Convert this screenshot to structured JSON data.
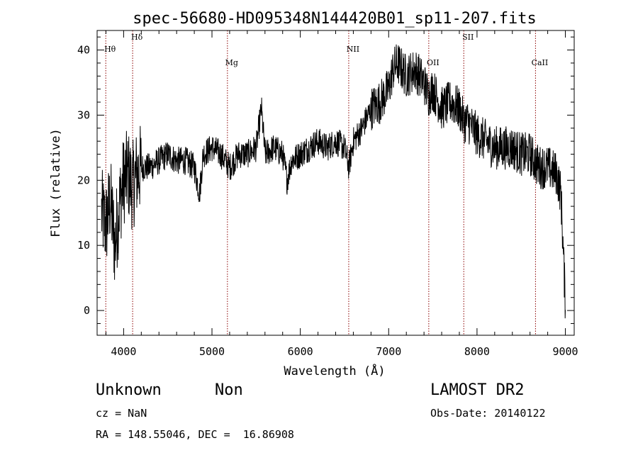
{
  "chart_data": {
    "type": "line",
    "title": "spec-56680-HD095348N144420B01_sp11-207.fits",
    "xlabel": "Wavelength (Å)",
    "ylabel": "Flux (relative)",
    "xlim": [
      3700,
      9100
    ],
    "ylim": [
      -3.8,
      43.0
    ],
    "x_ticks": [
      "4000",
      "5000",
      "6000",
      "7000",
      "8000",
      "9000"
    ],
    "y_ticks": [
      "0",
      "10",
      "20",
      "30",
      "40"
    ],
    "x_tick_values": [
      4000,
      5000,
      6000,
      7000,
      8000,
      9000
    ],
    "y_tick_values": [
      0,
      10,
      20,
      30,
      40
    ],
    "series": [
      {
        "color": "#000000",
        "x": [
          3750,
          3800,
          3850,
          3900,
          3950,
          4000,
          4050,
          4100,
          4150,
          4200,
          4300,
          4400,
          4500,
          4600,
          4700,
          4800,
          4860,
          4900,
          5000,
          5100,
          5200,
          5300,
          5400,
          5500,
          5560,
          5600,
          5700,
          5800,
          5850,
          5900,
          6000,
          6100,
          6200,
          6300,
          6400,
          6500,
          6550,
          6600,
          6700,
          6800,
          6900,
          7000,
          7050,
          7100,
          7200,
          7300,
          7400,
          7450,
          7500,
          7600,
          7700,
          7800,
          7850,
          7900,
          8000,
          8100,
          8200,
          8300,
          8400,
          8500,
          8600,
          8700,
          8800,
          8900,
          8950,
          9000
        ],
        "y": [
          15,
          13,
          17,
          10,
          16,
          20,
          21,
          19,
          21,
          22,
          22,
          23,
          24,
          23,
          23,
          22,
          18,
          24,
          25,
          24,
          22,
          24,
          24,
          25,
          31,
          24,
          25,
          24,
          20,
          23,
          24,
          25,
          26,
          25,
          26,
          25,
          22,
          26,
          28,
          31,
          32,
          34,
          37,
          38,
          36,
          37,
          35,
          33,
          34,
          31,
          32,
          31,
          29,
          29,
          27,
          26,
          25,
          25,
          25,
          24,
          24,
          22,
          22,
          21,
          18,
          1
        ]
      }
    ],
    "line_markers": [
      {
        "label": "Hθ",
        "x": 3798
      },
      {
        "label": "Hδ",
        "x": 4102
      },
      {
        "label": "Mg",
        "x": 5175
      },
      {
        "label": "NII",
        "x": 6548
      },
      {
        "label": "OII",
        "x": 7454
      },
      {
        "label": "SII",
        "x": 7850
      },
      {
        "label": "CaII",
        "x": 8662
      }
    ],
    "marker_color": "#8b0000",
    "grid": false,
    "legend": "none"
  },
  "info": {
    "object_class": "Unknown",
    "object_subclass": "Non",
    "survey": "LAMOST DR2",
    "cz": "cz = NaN",
    "obs_date": "Obs-Date: 20140122",
    "coords": "RA = 148.55046, DEC =  16.86908"
  }
}
